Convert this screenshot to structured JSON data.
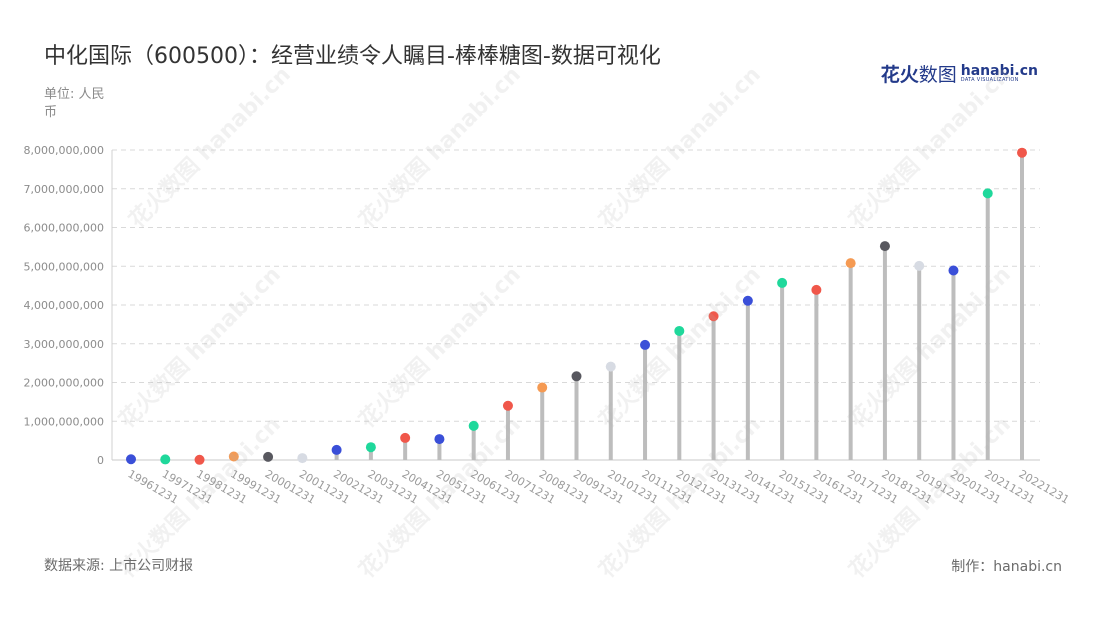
{
  "title": "中化国际（600500）：经营业绩令人瞩目-棒棒糖图-数据可视化",
  "unit_label": "单位: 人民币",
  "source_label": "数据来源: 上市公司财报",
  "credit_label": "制作：hanabi.cn",
  "brand": {
    "cn_main": "花火",
    "cn_sub": "数图",
    "en": "hanabi.cn",
    "en_sub": "DATA VISUALIZATION"
  },
  "watermark_text": "花火数图 hanabi.cn",
  "chart_data": {
    "type": "lollipop",
    "x": [
      "19961231",
      "19971231",
      "19981231",
      "19991231",
      "20001231",
      "20011231",
      "20021231",
      "20031231",
      "20041231",
      "20051231",
      "20061231",
      "20071231",
      "20081231",
      "20091231",
      "20101231",
      "20111231",
      "20121231",
      "20131231",
      "20141231",
      "20151231",
      "20161231",
      "20171231",
      "20181231",
      "20191231",
      "20201231",
      "20211231",
      "20221231"
    ],
    "values": [
      20000000,
      15000000,
      5000000,
      90000000,
      80000000,
      50000000,
      260000000,
      330000000,
      570000000,
      540000000,
      880000000,
      1400000000,
      1870000000,
      2160000000,
      2410000000,
      2970000000,
      3330000000,
      3710000000,
      4110000000,
      4570000000,
      4390000000,
      5080000000,
      5520000000,
      5010000000,
      4890000000,
      6880000000,
      7930000000
    ],
    "dot_colors": [
      "#3a4fd8",
      "#1fd89b",
      "#f0574a",
      "#f59a53",
      "#58585f",
      "#d7dbe3",
      "#3a4fd8",
      "#1fd89b",
      "#f0574a",
      "#3a4fd8",
      "#1fd89b",
      "#f0574a",
      "#f59a53",
      "#58585f",
      "#d7dbe3",
      "#3a4fd8",
      "#1fd89b",
      "#f0574a",
      "#3a4fd8",
      "#1fd89b",
      "#f0574a",
      "#f59a53",
      "#58585f",
      "#d7dbe3",
      "#3a4fd8",
      "#1fd89b",
      "#f0574a"
    ],
    "stem_color": "#bdbdbd",
    "y_ticks": [
      "0",
      "1,000,000,000",
      "2,000,000,000",
      "3,000,000,000",
      "4,000,000,000",
      "5,000,000,000",
      "6,000,000,000",
      "7,000,000,000",
      "8,000,000,000"
    ],
    "ylim": [
      0,
      8000000000
    ],
    "grid": true,
    "grid_style": "dashed"
  }
}
